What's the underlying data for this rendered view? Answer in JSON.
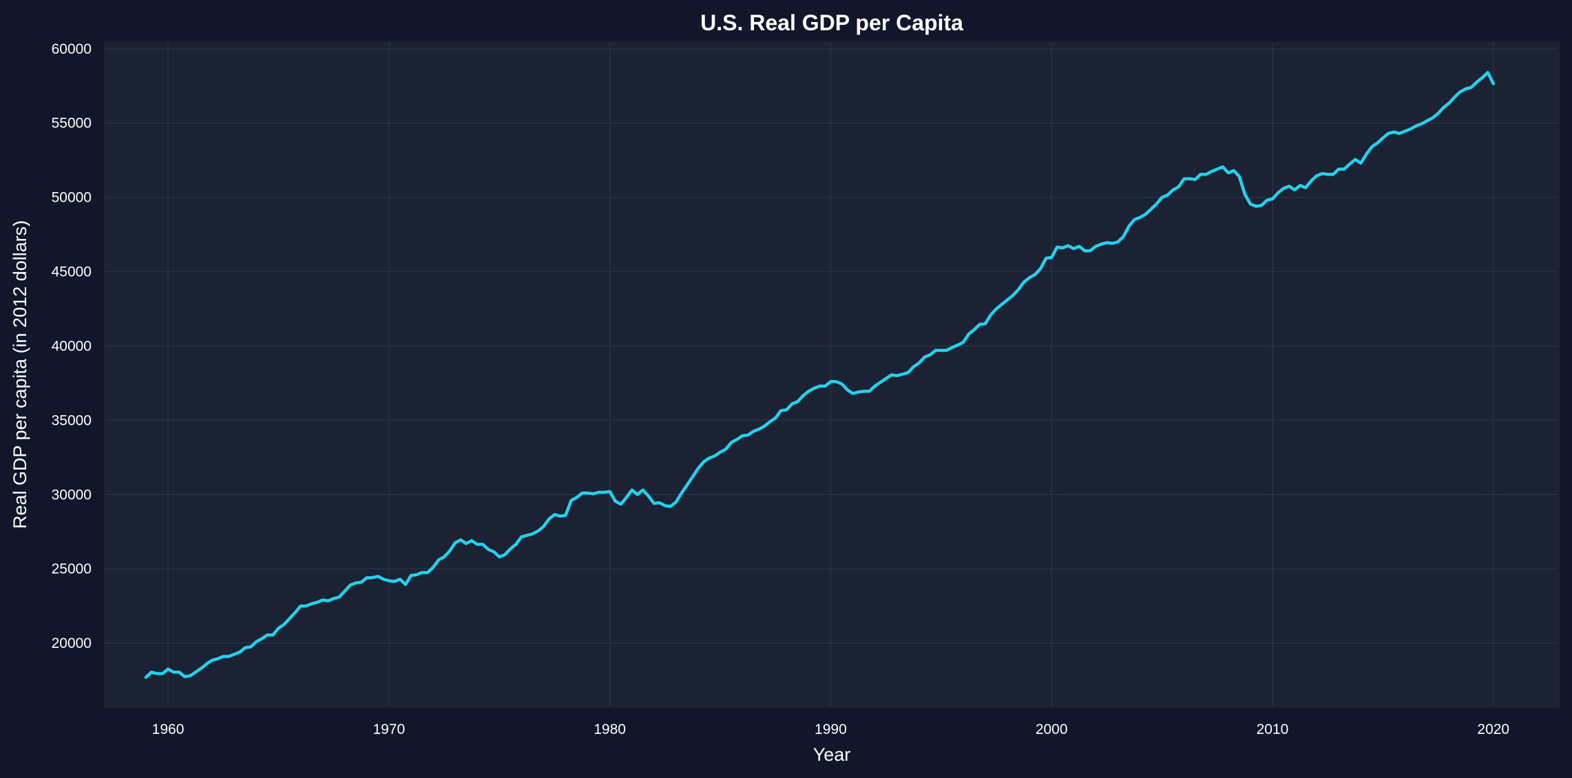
{
  "chart_data": {
    "type": "line",
    "title": "U.S. Real GDP per Capita",
    "xlabel": "Year",
    "ylabel": "Real GDP per capita (in 2012 dollars)",
    "xlim": [
      1957.1,
      2023.0
    ],
    "ylim": [
      15650,
      60500
    ],
    "xticks": [
      "1960",
      "1970",
      "1980",
      "1990",
      "2000",
      "2010",
      "2020"
    ],
    "yticks": [
      "20000",
      "25000",
      "30000",
      "35000",
      "40000",
      "45000",
      "50000",
      "55000",
      "60000"
    ],
    "grid": true,
    "legend": "none",
    "colors": {
      "background": "#11162a",
      "plot_background": "#1b2234",
      "grid": "#283247",
      "line": "#22d3ee",
      "text": "#ffffff"
    },
    "x": [
      "1959Q1",
      "1959Q2",
      "1959Q3",
      "1959Q4",
      "1960Q1",
      "1960Q2",
      "1960Q3",
      "1960Q4",
      "1961Q1",
      "1961Q2",
      "1961Q3",
      "1961Q4",
      "1962Q1",
      "1962Q2",
      "1962Q3",
      "1962Q4",
      "1963Q1",
      "1963Q2",
      "1963Q3",
      "1963Q4",
      "1964Q1",
      "1964Q2",
      "1964Q3",
      "1964Q4",
      "1965Q1",
      "1965Q2",
      "1965Q3",
      "1965Q4",
      "1966Q1",
      "1966Q2",
      "1966Q3",
      "1966Q4",
      "1967Q1",
      "1967Q2",
      "1967Q3",
      "1967Q4",
      "1968Q1",
      "1968Q2",
      "1968Q3",
      "1968Q4",
      "1969Q1",
      "1969Q2",
      "1969Q3",
      "1969Q4",
      "1970Q1",
      "1970Q2",
      "1970Q3",
      "1970Q4",
      "1971Q1",
      "1971Q2",
      "1971Q3",
      "1971Q4",
      "1972Q1",
      "1972Q2",
      "1972Q3",
      "1972Q4",
      "1973Q1",
      "1973Q2",
      "1973Q3",
      "1973Q4",
      "1974Q1",
      "1974Q2",
      "1974Q3",
      "1974Q4",
      "1975Q1",
      "1975Q2",
      "1975Q3",
      "1975Q4",
      "1976Q1",
      "1976Q2",
      "1976Q3",
      "1976Q4",
      "1977Q1",
      "1977Q2",
      "1977Q3",
      "1977Q4",
      "1978Q1",
      "1978Q2",
      "1978Q3",
      "1978Q4",
      "1979Q1",
      "1979Q2",
      "1979Q3",
      "1979Q4",
      "1980Q1",
      "1980Q2",
      "1980Q3",
      "1980Q4",
      "1981Q1",
      "1981Q2",
      "1981Q3",
      "1981Q4",
      "1982Q1",
      "1982Q2",
      "1982Q3",
      "1982Q4",
      "1983Q1",
      "1983Q2",
      "1983Q3",
      "1983Q4",
      "1984Q1",
      "1984Q2",
      "1984Q3",
      "1984Q4",
      "1985Q1",
      "1985Q2",
      "1985Q3",
      "1985Q4",
      "1986Q1",
      "1986Q2",
      "1986Q3",
      "1986Q4",
      "1987Q1",
      "1987Q2",
      "1987Q3",
      "1987Q4",
      "1988Q1",
      "1988Q2",
      "1988Q3",
      "1988Q4",
      "1989Q1",
      "1989Q2",
      "1989Q3",
      "1989Q4",
      "1990Q1",
      "1990Q2",
      "1990Q3",
      "1990Q4",
      "1991Q1",
      "1991Q2",
      "1991Q3",
      "1991Q4",
      "1992Q1",
      "1992Q2",
      "1992Q3",
      "1992Q4",
      "1993Q1",
      "1993Q2",
      "1993Q3",
      "1993Q4",
      "1994Q1",
      "1994Q2",
      "1994Q3",
      "1994Q4",
      "1995Q1",
      "1995Q2",
      "1995Q3",
      "1995Q4",
      "1996Q1",
      "1996Q2",
      "1996Q3",
      "1996Q4",
      "1997Q1",
      "1997Q2",
      "1997Q3",
      "1997Q4",
      "1998Q1",
      "1998Q2",
      "1998Q3",
      "1998Q4",
      "1999Q1",
      "1999Q2",
      "1999Q3",
      "1999Q4",
      "2000Q1",
      "2000Q2",
      "2000Q3",
      "2000Q4",
      "2001Q1",
      "2001Q2",
      "2001Q3",
      "2001Q4",
      "2002Q1",
      "2002Q2",
      "2002Q3",
      "2002Q4",
      "2003Q1",
      "2003Q2",
      "2003Q3",
      "2003Q4",
      "2004Q1",
      "2004Q2",
      "2004Q3",
      "2004Q4",
      "2005Q1",
      "2005Q2",
      "2005Q3",
      "2005Q4",
      "2006Q1",
      "2006Q2",
      "2006Q3",
      "2006Q4",
      "2007Q1",
      "2007Q2",
      "2007Q3",
      "2007Q4",
      "2008Q1",
      "2008Q2",
      "2008Q3",
      "2008Q4",
      "2009Q1",
      "2009Q2",
      "2009Q3",
      "2009Q4",
      "2010Q1",
      "2010Q2",
      "2010Q3",
      "2010Q4",
      "2011Q1",
      "2011Q2",
      "2011Q3",
      "2011Q4",
      "2012Q1",
      "2012Q2",
      "2012Q3",
      "2012Q4",
      "2013Q1",
      "2013Q2",
      "2013Q3",
      "2013Q4",
      "2014Q1",
      "2014Q2",
      "2014Q3",
      "2014Q4",
      "2015Q1",
      "2015Q2",
      "2015Q3",
      "2015Q4",
      "2016Q1",
      "2016Q2",
      "2016Q3",
      "2016Q4",
      "2017Q1",
      "2017Q2",
      "2017Q3",
      "2017Q4",
      "2018Q1",
      "2018Q2",
      "2018Q3",
      "2018Q4",
      "2019Q1",
      "2019Q2",
      "2019Q3",
      "2019Q4",
      "2020Q1"
    ],
    "series": [
      {
        "values": [
          17700,
          18050,
          17950,
          17950,
          18250,
          18050,
          18050,
          17750,
          17800,
          18050,
          18300,
          18600,
          18850,
          18950,
          19100,
          19100,
          19250,
          19400,
          19700,
          19750,
          20100,
          20300,
          20550,
          20550,
          21000,
          21250,
          21650,
          22050,
          22500,
          22500,
          22650,
          22750,
          22900,
          22850,
          23000,
          23100,
          23500,
          23900,
          24050,
          24100,
          24400,
          24400,
          24500,
          24300,
          24200,
          24150,
          24300,
          23950,
          24550,
          24600,
          24750,
          24750,
          25100,
          25600,
          25800,
          26200,
          26750,
          26950,
          26700,
          26900,
          26650,
          26650,
          26300,
          26150,
          25800,
          25950,
          26350,
          26650,
          27150,
          27250,
          27350,
          27550,
          27850,
          28350,
          28650,
          28550,
          28600,
          29600,
          29800,
          30100,
          30100,
          30050,
          30150,
          30150,
          30200,
          29550,
          29350,
          29800,
          30300,
          30000,
          30300,
          29900,
          29400,
          29450,
          29250,
          29200,
          29500,
          30100,
          30650,
          31200,
          31750,
          32200,
          32450,
          32600,
          32850,
          33050,
          33500,
          33700,
          33950,
          34000,
          34250,
          34400,
          34600,
          34900,
          35150,
          35650,
          35700,
          36100,
          36250,
          36650,
          36950,
          37150,
          37300,
          37300,
          37600,
          37600,
          37450,
          37050,
          36800,
          36900,
          36950,
          36950,
          37300,
          37550,
          37800,
          38050,
          38000,
          38100,
          38200,
          38600,
          38850,
          39250,
          39400,
          39700,
          39700,
          39700,
          39900,
          40050,
          40250,
          40800,
          41100,
          41450,
          41500,
          42100,
          42500,
          42800,
          43100,
          43400,
          43800,
          44300,
          44600,
          44800,
          45200,
          45900,
          45950,
          46650,
          46600,
          46750,
          46550,
          46700,
          46400,
          46400,
          46700,
          46850,
          46950,
          46900,
          47000,
          47350,
          48050,
          48500,
          48650,
          48850,
          49200,
          49550,
          50000,
          50150,
          50500,
          50700,
          51250,
          51250,
          51200,
          51550,
          51550,
          51750,
          51900,
          52050,
          51650,
          51800,
          51400,
          50200,
          49550,
          49400,
          49450,
          49800,
          49900,
          50300,
          50600,
          50750,
          50500,
          50800,
          50650,
          51100,
          51450,
          51600,
          51550,
          51550,
          51900,
          51900,
          52250,
          52550,
          52300,
          52900,
          53400,
          53650,
          54000,
          54300,
          54400,
          54300,
          54450,
          54600,
          54800,
          54950,
          55150,
          55350,
          55650,
          56050,
          56350,
          56750,
          57100,
          57300,
          57400,
          57750,
          58050,
          58400,
          57650
        ]
      }
    ]
  }
}
